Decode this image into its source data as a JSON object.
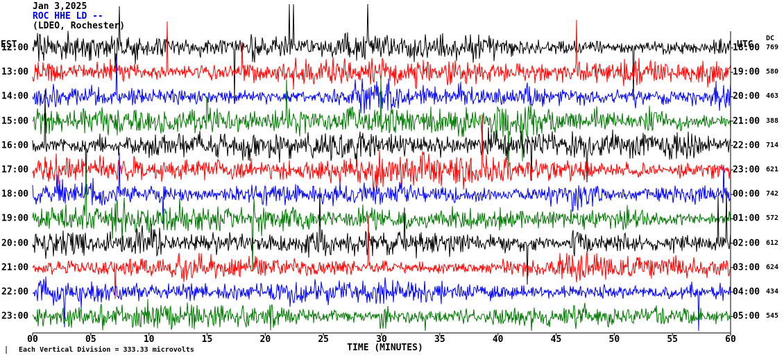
{
  "header": {
    "date": "Jan 3,2025",
    "station": "ROC HHE LD --",
    "location": "(LDEO, Rochester)"
  },
  "axes": {
    "left_label": "EST",
    "right_label": "UTC",
    "dc_label": "DC",
    "x_title": "TIME (MINUTES)",
    "x_ticks": [
      "00",
      "05",
      "10",
      "15",
      "20",
      "25",
      "30",
      "35",
      "40",
      "45",
      "50",
      "55",
      "60"
    ]
  },
  "footer": {
    "scale_note": "Each Vertical Division = 333.33 microvolts"
  },
  "colors": {
    "black": "#000000",
    "red": "#ff0000",
    "blue": "#0000ff",
    "green": "#007700",
    "axis": "#000000"
  },
  "chart_data": {
    "type": "line",
    "title": "ROC HHE LD -- (LDEO, Rochester) helicorder, Jan 3,2025",
    "xlabel": "TIME (MINUTES)",
    "x_range_minutes": [
      0,
      60
    ],
    "x_tick_step_minutes": 5,
    "vertical_division_microvolts": 333.33,
    "rows": [
      {
        "est": "12:00",
        "utc": "18:00",
        "dc": 769,
        "color": "black"
      },
      {
        "est": "13:00",
        "utc": "19:00",
        "dc": 580,
        "color": "red"
      },
      {
        "est": "14:00",
        "utc": "20:00",
        "dc": 463,
        "color": "blue"
      },
      {
        "est": "15:00",
        "utc": "21:00",
        "dc": 388,
        "color": "green"
      },
      {
        "est": "16:00",
        "utc": "22:00",
        "dc": 714,
        "color": "black"
      },
      {
        "est": "17:00",
        "utc": "23:00",
        "dc": 621,
        "color": "red"
      },
      {
        "est": "18:00",
        "utc": "00:00",
        "dc": 742,
        "color": "blue"
      },
      {
        "est": "19:00",
        "utc": "01:00",
        "dc": 572,
        "color": "green"
      },
      {
        "est": "20:00",
        "utc": "02:00",
        "dc": 612,
        "color": "black"
      },
      {
        "est": "21:00",
        "utc": "03:00",
        "dc": 624,
        "color": "red"
      },
      {
        "est": "22:00",
        "utc": "04:00",
        "dc": 434,
        "color": "blue"
      },
      {
        "est": "23:00",
        "utc": "05:00",
        "dc": 545,
        "color": "green"
      }
    ],
    "waveform_note": "continuous high-amplitude broadband seismic noise on every hourly trace; individual sample values not resolvable from image"
  }
}
